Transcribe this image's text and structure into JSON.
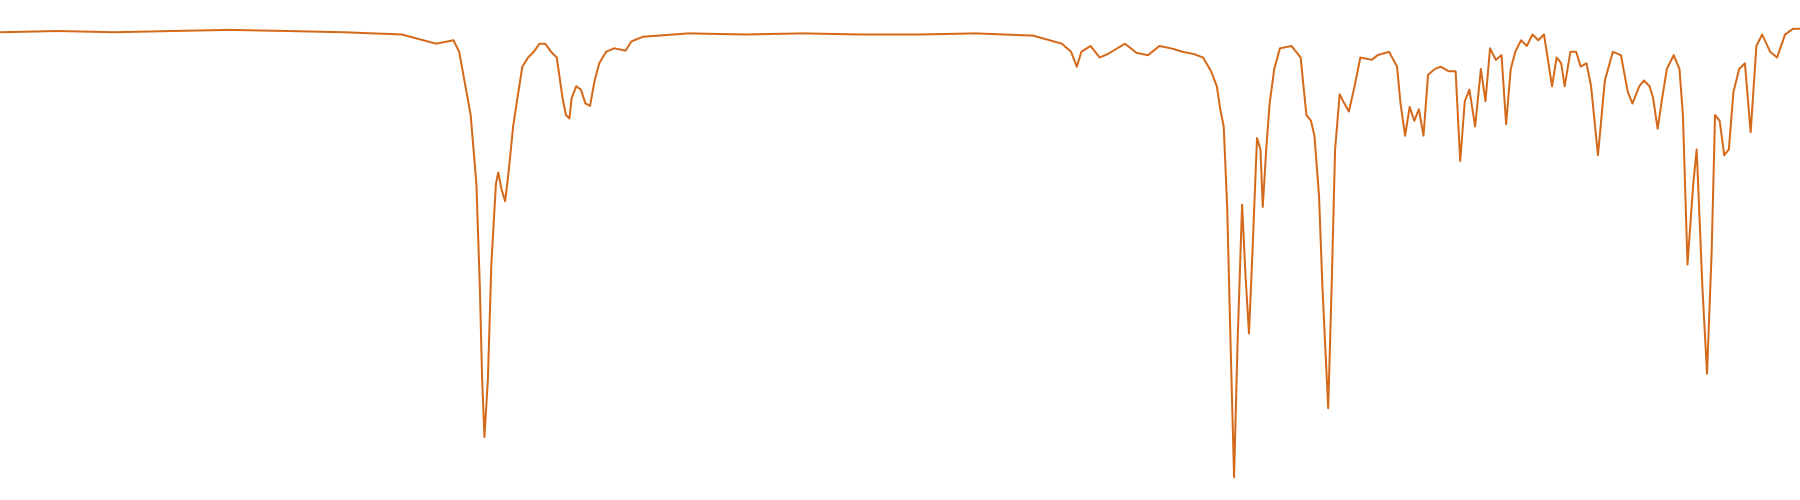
{
  "chart_data": {
    "type": "line",
    "color": "#d4691a",
    "xlim": [
      0,
      1568
    ],
    "ylim": [
      0,
      100
    ],
    "series": [
      {
        "color": "#d4691a",
        "x": [
          0,
          50,
          100,
          150,
          200,
          250,
          300,
          350,
          380,
          395,
          400,
          410,
          415,
          418,
          420,
          422,
          425,
          428,
          432,
          434,
          437,
          440,
          443,
          447,
          450,
          455,
          460,
          465,
          470,
          475,
          480,
          485,
          490,
          493,
          496,
          498,
          502,
          506,
          510,
          514,
          518,
          522,
          528,
          535,
          545,
          550,
          560,
          600,
          650,
          700,
          750,
          800,
          850,
          900,
          925,
          933,
          938,
          942,
          950,
          958,
          965,
          980,
          990,
          1000,
          1010,
          1020,
          1030,
          1040,
          1048,
          1055,
          1060,
          1063,
          1066,
          1069,
          1072,
          1075,
          1078,
          1082,
          1085,
          1088,
          1091,
          1095,
          1098,
          1100,
          1103,
          1106,
          1110,
          1115,
          1125,
          1133,
          1138,
          1142,
          1145,
          1149,
          1152,
          1157,
          1160,
          1163,
          1167,
          1170,
          1175,
          1180,
          1185,
          1195,
          1200,
          1210,
          1217,
          1220,
          1224,
          1228,
          1232,
          1236,
          1240,
          1244,
          1250,
          1255,
          1262,
          1268,
          1272,
          1276,
          1280,
          1285,
          1290,
          1294,
          1298,
          1303,
          1308,
          1312,
          1316,
          1320,
          1325,
          1330,
          1335,
          1340,
          1345,
          1352,
          1356,
          1360,
          1363,
          1368,
          1373,
          1377,
          1382,
          1386,
          1392,
          1398,
          1405,
          1412,
          1418,
          1422,
          1428,
          1432,
          1437,
          1440,
          1444,
          1448,
          1452,
          1458,
          1463,
          1466,
          1470,
          1475,
          1478,
          1483,
          1487,
          1491,
          1494,
          1498,
          1502,
          1506,
          1510,
          1515,
          1520,
          1525,
          1530,
          1535,
          1542,
          1548,
          1555,
          1562,
          1568
        ],
        "values": [
          98,
          98.25,
          98,
          98.25,
          98.5,
          98.25,
          98,
          97.5,
          95.5,
          96.25,
          93.75,
          80,
          65,
          42.5,
          22.5,
          10,
          22.5,
          47.5,
          65,
          67.5,
          63.75,
          61.25,
          67.5,
          77.5,
          82.5,
          90.5,
          92.5,
          93.75,
          95.5,
          95.5,
          93.75,
          92.5,
          83.75,
          80,
          79.25,
          83.75,
          86.25,
          85.5,
          82.5,
          82,
          87.5,
          91.25,
          93.75,
          94.5,
          94,
          96,
          97,
          97.75,
          97.5,
          97.75,
          97.5,
          97.5,
          97.75,
          97.25,
          95.5,
          93.75,
          90.5,
          93.75,
          95,
          92.5,
          93.25,
          95.5,
          93.5,
          93,
          95,
          94.5,
          93.75,
          93.25,
          92.5,
          89.5,
          86.25,
          81.25,
          77.5,
          60,
          30,
          1.25,
          30,
          60.5,
          45,
          32.5,
          50,
          75,
          72.5,
          60,
          72.5,
          82.5,
          90,
          94.5,
          95,
          92.5,
          80,
          78.75,
          75.5,
          62.5,
          42.5,
          16.25,
          42.5,
          72.5,
          84.5,
          83,
          80.75,
          86.25,
          92.5,
          92,
          93,
          93.75,
          90.5,
          82.5,
          75.5,
          81.75,
          78.75,
          81.25,
          75.5,
          88.75,
          90,
          90.5,
          89.5,
          89.5,
          70,
          83,
          85.5,
          77.5,
          90,
          83,
          94.5,
          92,
          93,
          78,
          90,
          93.75,
          96.25,
          95,
          97.5,
          96.25,
          97.5,
          86.25,
          92.5,
          91.25,
          86.25,
          93.75,
          93.75,
          90.5,
          91.25,
          86.25,
          71.25,
          87.5,
          93.75,
          93,
          85,
          82.5,
          86.25,
          87.5,
          86.25,
          83.75,
          77,
          83.75,
          90,
          93,
          90,
          80,
          47.5,
          65,
          72.5,
          42.5,
          23.75,
          50,
          80,
          78.75,
          71.25,
          72.5,
          85,
          90,
          91.25,
          76.25,
          95,
          97.5,
          93.75,
          92.5,
          97.5,
          98.75,
          98.75
        ]
      }
    ]
  }
}
